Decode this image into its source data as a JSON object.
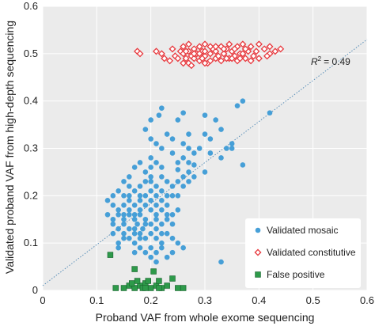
{
  "chart_data": {
    "type": "scatter",
    "title": "",
    "xlabel": "Proband VAF from whole exome sequencing",
    "ylabel": "Validated proband VAF from high-depth sequencing",
    "xlim": [
      0,
      0.6
    ],
    "ylim": [
      0,
      0.6
    ],
    "xticks": [
      "0",
      "0.1",
      "0.2",
      "0.3",
      "0.4",
      "0.5",
      "0.6"
    ],
    "yticks": [
      "0",
      "0.1",
      "0.2",
      "0.3",
      "0.4",
      "0.5",
      "0.6"
    ],
    "grid": true,
    "background": "#ebebeb",
    "legend_position": "bottom-right",
    "annotation": {
      "r2_label": "R",
      "r2_value": "= 0.49"
    },
    "reference_line": {
      "style": "dotted",
      "color": "#5a8fb8",
      "x": [
        0,
        0.6
      ],
      "y": [
        0.01,
        0.53
      ]
    },
    "series": [
      {
        "name": "Validated mosaic",
        "marker": "circle",
        "color": "#3d9bd6",
        "points": [
          [
            0.22,
            0.385
          ],
          [
            0.215,
            0.37
          ],
          [
            0.2,
            0.36
          ],
          [
            0.25,
            0.36
          ],
          [
            0.26,
            0.375
          ],
          [
            0.27,
            0.33
          ],
          [
            0.3,
            0.33
          ],
          [
            0.31,
            0.32
          ],
          [
            0.32,
            0.36
          ],
          [
            0.3,
            0.37
          ],
          [
            0.36,
            0.39
          ],
          [
            0.33,
            0.34
          ],
          [
            0.35,
            0.31
          ],
          [
            0.37,
            0.4
          ],
          [
            0.42,
            0.375
          ],
          [
            0.19,
            0.34
          ],
          [
            0.2,
            0.32
          ],
          [
            0.21,
            0.31
          ],
          [
            0.23,
            0.33
          ],
          [
            0.24,
            0.32
          ],
          [
            0.26,
            0.31
          ],
          [
            0.27,
            0.3
          ],
          [
            0.28,
            0.29
          ],
          [
            0.29,
            0.3
          ],
          [
            0.31,
            0.29
          ],
          [
            0.33,
            0.28
          ],
          [
            0.34,
            0.3
          ],
          [
            0.22,
            0.3
          ],
          [
            0.24,
            0.29
          ],
          [
            0.26,
            0.28
          ],
          [
            0.27,
            0.27
          ],
          [
            0.28,
            0.265
          ],
          [
            0.25,
            0.255
          ],
          [
            0.27,
            0.25
          ],
          [
            0.28,
            0.24
          ],
          [
            0.26,
            0.24
          ],
          [
            0.3,
            0.25
          ],
          [
            0.37,
            0.265
          ],
          [
            0.35,
            0.3
          ],
          [
            0.25,
            0.27
          ],
          [
            0.2,
            0.28
          ],
          [
            0.21,
            0.27
          ],
          [
            0.22,
            0.26
          ],
          [
            0.18,
            0.27
          ],
          [
            0.19,
            0.25
          ],
          [
            0.2,
            0.24
          ],
          [
            0.21,
            0.22
          ],
          [
            0.22,
            0.24
          ],
          [
            0.23,
            0.23
          ],
          [
            0.24,
            0.22
          ],
          [
            0.2,
            0.26
          ],
          [
            0.17,
            0.26
          ],
          [
            0.16,
            0.24
          ],
          [
            0.15,
            0.23
          ],
          [
            0.16,
            0.22
          ],
          [
            0.17,
            0.21
          ],
          [
            0.18,
            0.22
          ],
          [
            0.19,
            0.2
          ],
          [
            0.2,
            0.21
          ],
          [
            0.21,
            0.2
          ],
          [
            0.22,
            0.19
          ],
          [
            0.23,
            0.2
          ],
          [
            0.24,
            0.2
          ],
          [
            0.25,
            0.23
          ],
          [
            0.15,
            0.2
          ],
          [
            0.14,
            0.21
          ],
          [
            0.13,
            0.2
          ],
          [
            0.12,
            0.19
          ],
          [
            0.13,
            0.18
          ],
          [
            0.14,
            0.17
          ],
          [
            0.15,
            0.18
          ],
          [
            0.16,
            0.19
          ],
          [
            0.17,
            0.18
          ],
          [
            0.18,
            0.19
          ],
          [
            0.19,
            0.18
          ],
          [
            0.2,
            0.17
          ],
          [
            0.21,
            0.18
          ],
          [
            0.22,
            0.17
          ],
          [
            0.23,
            0.18
          ],
          [
            0.24,
            0.16
          ],
          [
            0.25,
            0.17
          ],
          [
            0.16,
            0.17
          ],
          [
            0.14,
            0.16
          ],
          [
            0.15,
            0.15
          ],
          [
            0.16,
            0.16
          ],
          [
            0.17,
            0.15
          ],
          [
            0.18,
            0.16
          ],
          [
            0.19,
            0.15
          ],
          [
            0.2,
            0.14
          ],
          [
            0.21,
            0.15
          ],
          [
            0.22,
            0.14
          ],
          [
            0.23,
            0.15
          ],
          [
            0.13,
            0.15
          ],
          [
            0.12,
            0.16
          ],
          [
            0.175,
            0.14
          ],
          [
            0.185,
            0.13
          ],
          [
            0.15,
            0.14
          ],
          [
            0.16,
            0.13
          ],
          [
            0.14,
            0.13
          ],
          [
            0.17,
            0.12
          ],
          [
            0.18,
            0.12
          ],
          [
            0.19,
            0.11
          ],
          [
            0.2,
            0.12
          ],
          [
            0.21,
            0.11
          ],
          [
            0.22,
            0.1
          ],
          [
            0.23,
            0.12
          ],
          [
            0.24,
            0.11
          ],
          [
            0.13,
            0.12
          ],
          [
            0.15,
            0.11
          ],
          [
            0.16,
            0.11
          ],
          [
            0.14,
            0.1
          ],
          [
            0.17,
            0.1
          ],
          [
            0.18,
            0.09
          ],
          [
            0.2,
            0.09
          ],
          [
            0.22,
            0.09
          ],
          [
            0.24,
            0.08
          ],
          [
            0.25,
            0.1
          ],
          [
            0.17,
            0.08
          ],
          [
            0.19,
            0.08
          ],
          [
            0.21,
            0.08
          ],
          [
            0.23,
            0.07
          ],
          [
            0.26,
            0.09
          ],
          [
            0.2,
            0.07
          ],
          [
            0.21,
            0.06
          ],
          [
            0.14,
            0.09
          ],
          [
            0.15,
            0.12
          ],
          [
            0.17,
            0.16
          ],
          [
            0.18,
            0.2
          ],
          [
            0.2,
            0.23
          ],
          [
            0.15,
            0.16
          ],
          [
            0.13,
            0.14
          ],
          [
            0.25,
            0.2
          ],
          [
            0.26,
            0.22
          ],
          [
            0.27,
            0.23
          ],
          [
            0.24,
            0.14
          ],
          [
            0.22,
            0.21
          ],
          [
            0.19,
            0.23
          ],
          [
            0.18,
            0.17
          ],
          [
            0.16,
            0.2
          ],
          [
            0.2,
            0.19
          ],
          [
            0.21,
            0.16
          ],
          [
            0.23,
            0.16
          ],
          [
            0.19,
            0.14
          ],
          [
            0.18,
            0.11
          ],
          [
            0.21,
            0.13
          ],
          [
            0.22,
            0.12
          ],
          [
            0.17,
            0.13
          ],
          [
            0.33,
            0.06
          ]
        ]
      },
      {
        "name": "Validated constitutive",
        "marker": "diamond",
        "color": "#e8383d",
        "points": [
          [
            0.175,
            0.505
          ],
          [
            0.18,
            0.5
          ],
          [
            0.21,
            0.505
          ],
          [
            0.22,
            0.5
          ],
          [
            0.225,
            0.49
          ],
          [
            0.235,
            0.485
          ],
          [
            0.24,
            0.51
          ],
          [
            0.245,
            0.495
          ],
          [
            0.255,
            0.505
          ],
          [
            0.26,
            0.5
          ],
          [
            0.265,
            0.49
          ],
          [
            0.27,
            0.505
          ],
          [
            0.27,
            0.48
          ],
          [
            0.275,
            0.495
          ],
          [
            0.28,
            0.51
          ],
          [
            0.28,
            0.49
          ],
          [
            0.285,
            0.5
          ],
          [
            0.29,
            0.515
          ],
          [
            0.29,
            0.485
          ],
          [
            0.295,
            0.505
          ],
          [
            0.3,
            0.495
          ],
          [
            0.3,
            0.52
          ],
          [
            0.305,
            0.48
          ],
          [
            0.31,
            0.5
          ],
          [
            0.315,
            0.51
          ],
          [
            0.32,
            0.49
          ],
          [
            0.32,
            0.505
          ],
          [
            0.325,
            0.495
          ],
          [
            0.33,
            0.515
          ],
          [
            0.33,
            0.485
          ],
          [
            0.335,
            0.5
          ],
          [
            0.34,
            0.51
          ],
          [
            0.345,
            0.49
          ],
          [
            0.35,
            0.505
          ],
          [
            0.355,
            0.495
          ],
          [
            0.36,
            0.515
          ],
          [
            0.36,
            0.485
          ],
          [
            0.365,
            0.5
          ],
          [
            0.37,
            0.52
          ],
          [
            0.375,
            0.49
          ],
          [
            0.38,
            0.505
          ],
          [
            0.385,
            0.515
          ],
          [
            0.39,
            0.495
          ],
          [
            0.395,
            0.505
          ],
          [
            0.4,
            0.49
          ],
          [
            0.41,
            0.51
          ],
          [
            0.42,
            0.5
          ],
          [
            0.43,
            0.505
          ],
          [
            0.44,
            0.51
          ],
          [
            0.26,
            0.515
          ],
          [
            0.275,
            0.475
          ],
          [
            0.295,
            0.49
          ],
          [
            0.31,
            0.485
          ],
          [
            0.34,
            0.49
          ],
          [
            0.355,
            0.51
          ],
          [
            0.37,
            0.5
          ],
          [
            0.385,
            0.485
          ],
          [
            0.4,
            0.52
          ],
          [
            0.28,
            0.5
          ],
          [
            0.3,
            0.505
          ],
          [
            0.32,
            0.515
          ],
          [
            0.345,
            0.52
          ],
          [
            0.265,
            0.505
          ],
          [
            0.25,
            0.49
          ],
          [
            0.375,
            0.51
          ],
          [
            0.29,
            0.5
          ],
          [
            0.31,
            0.515
          ],
          [
            0.35,
            0.49
          ],
          [
            0.26,
            0.48
          ],
          [
            0.3,
            0.48
          ],
          [
            0.335,
            0.51
          ],
          [
            0.365,
            0.49
          ],
          [
            0.42,
            0.515
          ],
          [
            0.27,
            0.52
          ],
          [
            0.415,
            0.495
          ]
        ]
      },
      {
        "name": "False positive",
        "marker": "square",
        "color": "#2e9a4a",
        "points": [
          [
            0.125,
            0.075
          ],
          [
            0.17,
            0.045
          ],
          [
            0.205,
            0.04
          ],
          [
            0.18,
            0.01
          ],
          [
            0.135,
            0.005
          ],
          [
            0.16,
            0.01
          ],
          [
            0.17,
            0.005
          ],
          [
            0.185,
            0.005
          ],
          [
            0.21,
            0.01
          ],
          [
            0.215,
            0.02
          ],
          [
            0.22,
            0.005
          ],
          [
            0.19,
            0.015
          ],
          [
            0.2,
            0.005
          ],
          [
            0.215,
            0.005
          ],
          [
            0.23,
            0.01
          ],
          [
            0.25,
            0.005
          ],
          [
            0.175,
            0.02
          ],
          [
            0.195,
            0.02
          ],
          [
            0.165,
            0.015
          ],
          [
            0.15,
            0.005
          ],
          [
            0.24,
            0.025
          ],
          [
            0.26,
            0.005
          ],
          [
            0.19,
            0.005
          ]
        ]
      }
    ]
  }
}
